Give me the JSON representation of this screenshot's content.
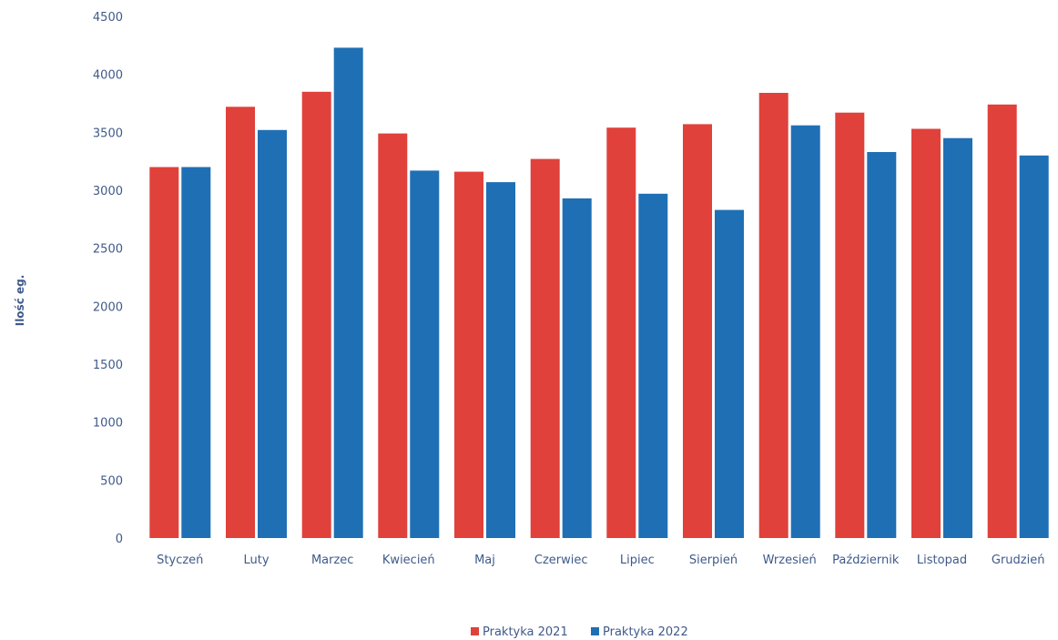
{
  "chart_data": {
    "type": "bar",
    "title": "",
    "xlabel": "",
    "ylabel": "Ilość eg.",
    "ylim": [
      0,
      4500
    ],
    "yticks": [
      0,
      500,
      1000,
      1500,
      2000,
      2500,
      3000,
      3500,
      4000,
      4500
    ],
    "grid": false,
    "legend_position": "bottom",
    "categories": [
      "Styczeń",
      "Luty",
      "Marzec",
      "Kwiecień",
      "Maj",
      "Czerwiec",
      "Lipiec",
      "Sierpień",
      "Wrzesień",
      "Październik",
      "Listopad",
      "Grudzień"
    ],
    "series": [
      {
        "name": "Praktyka 2021",
        "color": "#e0413b",
        "values": [
          3200,
          3720,
          3850,
          3490,
          3160,
          3270,
          3540,
          3570,
          3840,
          3670,
          3530,
          3740
        ]
      },
      {
        "name": "Praktyka 2022",
        "color": "#1f6fb5",
        "values": [
          3200,
          3520,
          4230,
          3170,
          3070,
          2930,
          2970,
          2830,
          3560,
          3330,
          3450,
          3300
        ]
      }
    ]
  }
}
